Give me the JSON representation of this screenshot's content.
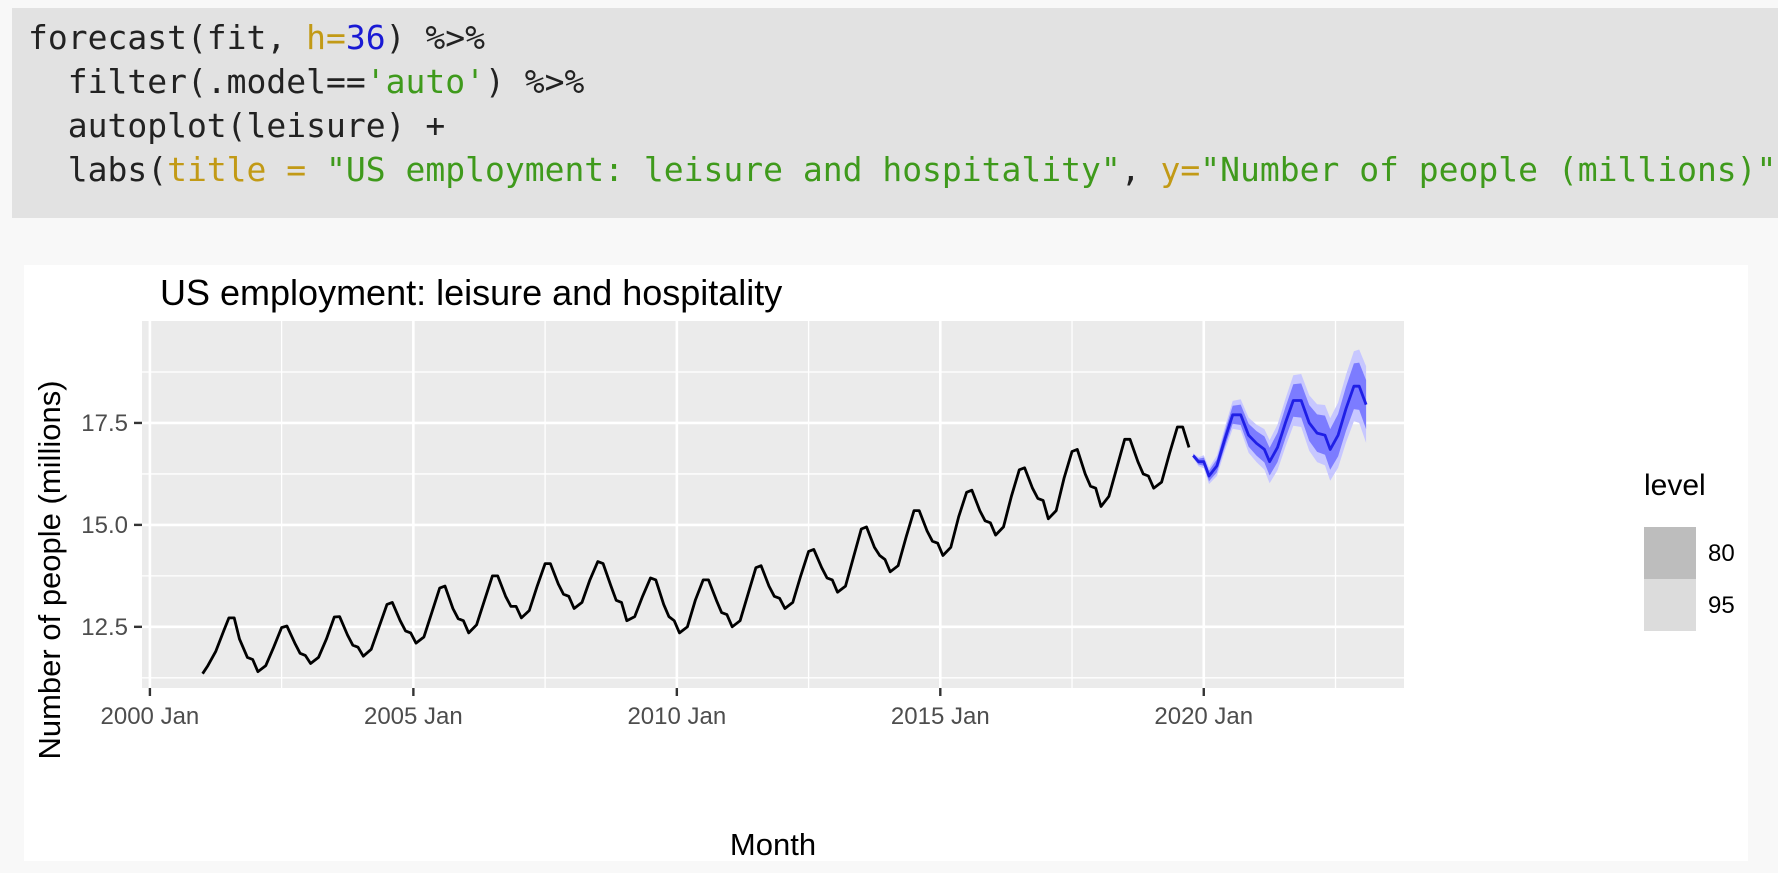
{
  "code": {
    "lines": [
      [
        {
          "t": "forecast(fit, ",
          "c": "plain"
        },
        {
          "t": "h=",
          "c": "arg"
        },
        {
          "t": "36",
          "c": "num"
        },
        {
          "t": ") %>%",
          "c": "plain"
        }
      ],
      [
        {
          "t": "  filter(.model==",
          "c": "plain"
        },
        {
          "t": "'auto'",
          "c": "str"
        },
        {
          "t": ") %>%",
          "c": "plain"
        }
      ],
      [
        {
          "t": "  autoplot(leisure) +",
          "c": "plain"
        }
      ],
      [
        {
          "t": "  labs(",
          "c": "plain"
        },
        {
          "t": "title = ",
          "c": "arg"
        },
        {
          "t": "\"US employment: leisure and hospitality\"",
          "c": "str"
        },
        {
          "t": ", ",
          "c": "plain"
        },
        {
          "t": "y=",
          "c": "arg"
        },
        {
          "t": "\"Number of people (millions)\"",
          "c": "str"
        },
        {
          "t": ")",
          "c": "plain"
        }
      ]
    ]
  },
  "chart_data": {
    "type": "line",
    "title": "US employment: leisure and hospitality",
    "xlabel": "Month",
    "ylabel": "Number of people (millions)",
    "xlim": [
      1999.85,
      2023.8
    ],
    "ylim": [
      11.0,
      20.0
    ],
    "x_ticks": [
      {
        "value": 2000,
        "label": "2000 Jan"
      },
      {
        "value": 2005,
        "label": "2005 Jan"
      },
      {
        "value": 2010,
        "label": "2010 Jan"
      },
      {
        "value": 2015,
        "label": "2015 Jan"
      },
      {
        "value": 2020,
        "label": "2020 Jan"
      }
    ],
    "y_ticks": [
      {
        "value": 12.5,
        "label": "12.5"
      },
      {
        "value": 15.0,
        "label": "15.0"
      },
      {
        "value": 17.5,
        "label": "17.5"
      }
    ],
    "grid": true,
    "legend": {
      "title": "level",
      "placement": "right",
      "entries": [
        {
          "label": "80",
          "color": "#bdbdbd"
        },
        {
          "label": "95",
          "color": "#dcdcdc"
        }
      ]
    },
    "colors": {
      "history": "#000000",
      "forecast": "#1f1fe6",
      "band80": "#7c7cff",
      "band95": "#c7c7ff",
      "panel": "#ebebeb",
      "grid_major": "#ffffff"
    },
    "series": [
      {
        "role": "history",
        "points": [
          [
            2001.0,
            11.35
          ],
          [
            2001.1,
            11.55
          ],
          [
            2001.25,
            11.9
          ],
          [
            2001.4,
            12.4
          ],
          [
            2001.5,
            12.72
          ],
          [
            2001.6,
            12.72
          ],
          [
            2001.7,
            12.2
          ],
          [
            2001.85,
            11.75
          ],
          [
            2001.95,
            11.7
          ],
          [
            2002.05,
            11.4
          ],
          [
            2002.2,
            11.55
          ],
          [
            2002.35,
            12.0
          ],
          [
            2002.5,
            12.48
          ],
          [
            2002.6,
            12.52
          ],
          [
            2002.75,
            12.1
          ],
          [
            2002.85,
            11.85
          ],
          [
            2002.95,
            11.8
          ],
          [
            2003.05,
            11.6
          ],
          [
            2003.2,
            11.75
          ],
          [
            2003.35,
            12.2
          ],
          [
            2003.5,
            12.74
          ],
          [
            2003.6,
            12.75
          ],
          [
            2003.75,
            12.3
          ],
          [
            2003.85,
            12.05
          ],
          [
            2003.95,
            12.0
          ],
          [
            2004.05,
            11.78
          ],
          [
            2004.2,
            11.95
          ],
          [
            2004.35,
            12.5
          ],
          [
            2004.5,
            13.05
          ],
          [
            2004.6,
            13.1
          ],
          [
            2004.75,
            12.65
          ],
          [
            2004.85,
            12.4
          ],
          [
            2004.95,
            12.35
          ],
          [
            2005.05,
            12.1
          ],
          [
            2005.2,
            12.25
          ],
          [
            2005.35,
            12.85
          ],
          [
            2005.5,
            13.45
          ],
          [
            2005.6,
            13.5
          ],
          [
            2005.75,
            12.95
          ],
          [
            2005.85,
            12.7
          ],
          [
            2005.95,
            12.65
          ],
          [
            2006.05,
            12.35
          ],
          [
            2006.2,
            12.55
          ],
          [
            2006.35,
            13.15
          ],
          [
            2006.5,
            13.75
          ],
          [
            2006.6,
            13.75
          ],
          [
            2006.75,
            13.25
          ],
          [
            2006.85,
            13.0
          ],
          [
            2006.95,
            13.0
          ],
          [
            2007.05,
            12.72
          ],
          [
            2007.2,
            12.9
          ],
          [
            2007.35,
            13.5
          ],
          [
            2007.5,
            14.05
          ],
          [
            2007.6,
            14.05
          ],
          [
            2007.75,
            13.55
          ],
          [
            2007.85,
            13.3
          ],
          [
            2007.95,
            13.25
          ],
          [
            2008.05,
            12.95
          ],
          [
            2008.2,
            13.1
          ],
          [
            2008.35,
            13.65
          ],
          [
            2008.5,
            14.1
          ],
          [
            2008.6,
            14.05
          ],
          [
            2008.75,
            13.5
          ],
          [
            2008.85,
            13.15
          ],
          [
            2008.95,
            13.1
          ],
          [
            2009.05,
            12.65
          ],
          [
            2009.2,
            12.75
          ],
          [
            2009.35,
            13.25
          ],
          [
            2009.5,
            13.7
          ],
          [
            2009.6,
            13.65
          ],
          [
            2009.75,
            13.05
          ],
          [
            2009.85,
            12.75
          ],
          [
            2009.95,
            12.65
          ],
          [
            2010.05,
            12.35
          ],
          [
            2010.2,
            12.5
          ],
          [
            2010.35,
            13.15
          ],
          [
            2010.5,
            13.65
          ],
          [
            2010.6,
            13.65
          ],
          [
            2010.75,
            13.15
          ],
          [
            2010.85,
            12.85
          ],
          [
            2010.95,
            12.8
          ],
          [
            2011.05,
            12.5
          ],
          [
            2011.2,
            12.65
          ],
          [
            2011.35,
            13.3
          ],
          [
            2011.5,
            13.95
          ],
          [
            2011.6,
            14.0
          ],
          [
            2011.75,
            13.5
          ],
          [
            2011.85,
            13.25
          ],
          [
            2011.95,
            13.2
          ],
          [
            2012.05,
            12.95
          ],
          [
            2012.2,
            13.1
          ],
          [
            2012.35,
            13.75
          ],
          [
            2012.5,
            14.35
          ],
          [
            2012.6,
            14.4
          ],
          [
            2012.75,
            13.95
          ],
          [
            2012.85,
            13.7
          ],
          [
            2012.95,
            13.65
          ],
          [
            2013.05,
            13.35
          ],
          [
            2013.2,
            13.5
          ],
          [
            2013.35,
            14.2
          ],
          [
            2013.5,
            14.9
          ],
          [
            2013.6,
            14.95
          ],
          [
            2013.75,
            14.45
          ],
          [
            2013.85,
            14.25
          ],
          [
            2013.95,
            14.15
          ],
          [
            2014.05,
            13.85
          ],
          [
            2014.2,
            14.0
          ],
          [
            2014.35,
            14.7
          ],
          [
            2014.5,
            15.35
          ],
          [
            2014.6,
            15.35
          ],
          [
            2014.75,
            14.85
          ],
          [
            2014.85,
            14.6
          ],
          [
            2014.95,
            14.55
          ],
          [
            2015.05,
            14.25
          ],
          [
            2015.2,
            14.45
          ],
          [
            2015.35,
            15.2
          ],
          [
            2015.5,
            15.8
          ],
          [
            2015.6,
            15.85
          ],
          [
            2015.75,
            15.35
          ],
          [
            2015.85,
            15.1
          ],
          [
            2015.95,
            15.05
          ],
          [
            2016.05,
            14.75
          ],
          [
            2016.2,
            14.95
          ],
          [
            2016.35,
            15.7
          ],
          [
            2016.5,
            16.35
          ],
          [
            2016.6,
            16.4
          ],
          [
            2016.75,
            15.9
          ],
          [
            2016.85,
            15.65
          ],
          [
            2016.95,
            15.6
          ],
          [
            2017.05,
            15.15
          ],
          [
            2017.2,
            15.35
          ],
          [
            2017.35,
            16.15
          ],
          [
            2017.5,
            16.8
          ],
          [
            2017.6,
            16.85
          ],
          [
            2017.75,
            16.25
          ],
          [
            2017.85,
            15.95
          ],
          [
            2017.95,
            15.9
          ],
          [
            2018.05,
            15.45
          ],
          [
            2018.2,
            15.7
          ],
          [
            2018.35,
            16.4
          ],
          [
            2018.5,
            17.1
          ],
          [
            2018.6,
            17.1
          ],
          [
            2018.75,
            16.55
          ],
          [
            2018.85,
            16.25
          ],
          [
            2018.95,
            16.2
          ],
          [
            2019.05,
            15.9
          ],
          [
            2019.2,
            16.05
          ],
          [
            2019.35,
            16.75
          ],
          [
            2019.5,
            17.4
          ],
          [
            2019.6,
            17.4
          ],
          [
            2019.72,
            16.9
          ]
        ]
      },
      {
        "role": "forecast",
        "points": [
          [
            2019.8,
            16.7
          ],
          [
            2019.9,
            16.55
          ],
          [
            2020.0,
            16.55
          ],
          [
            2020.1,
            16.2
          ],
          [
            2020.25,
            16.45
          ],
          [
            2020.4,
            17.1
          ],
          [
            2020.55,
            17.7
          ],
          [
            2020.7,
            17.7
          ],
          [
            2020.85,
            17.2
          ],
          [
            2021.0,
            17.0
          ],
          [
            2021.15,
            16.85
          ],
          [
            2021.25,
            16.55
          ],
          [
            2021.4,
            16.9
          ],
          [
            2021.55,
            17.5
          ],
          [
            2021.7,
            18.05
          ],
          [
            2021.85,
            18.05
          ],
          [
            2022.0,
            17.5
          ],
          [
            2022.15,
            17.25
          ],
          [
            2022.3,
            17.2
          ],
          [
            2022.4,
            16.85
          ],
          [
            2022.55,
            17.2
          ],
          [
            2022.7,
            17.85
          ],
          [
            2022.85,
            18.4
          ],
          [
            2022.95,
            18.4
          ],
          [
            2023.08,
            17.95
          ]
        ],
        "band80_halfwidth": [
          0.04,
          0.07,
          0.1,
          0.13,
          0.16,
          0.19,
          0.22,
          0.25,
          0.28,
          0.3,
          0.32,
          0.34,
          0.36,
          0.38,
          0.4,
          0.42,
          0.44,
          0.46,
          0.48,
          0.5,
          0.52,
          0.54,
          0.56,
          0.58,
          0.6
        ],
        "band95_halfwidth": [
          0.06,
          0.11,
          0.16,
          0.2,
          0.25,
          0.29,
          0.34,
          0.38,
          0.43,
          0.46,
          0.5,
          0.53,
          0.56,
          0.59,
          0.62,
          0.65,
          0.68,
          0.71,
          0.74,
          0.77,
          0.8,
          0.83,
          0.86,
          0.9,
          0.94
        ]
      }
    ]
  }
}
